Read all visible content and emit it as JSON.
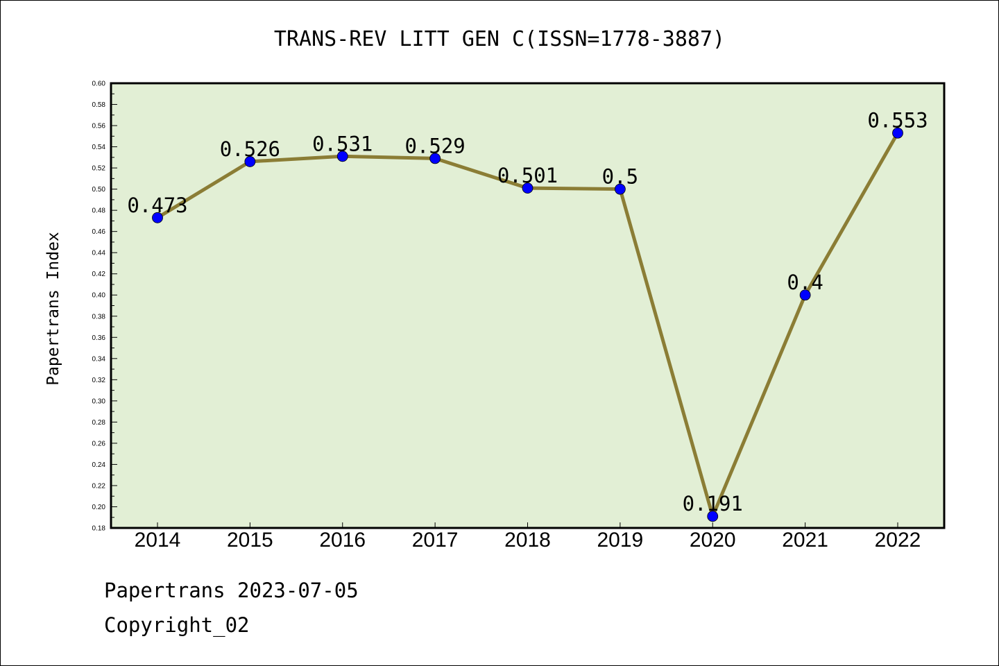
{
  "chart_data": {
    "type": "line",
    "title": "TRANS-REV LITT GEN C(ISSN=1778-3887)",
    "xlabel": "",
    "ylabel": "Papertrans Index",
    "categories": [
      "2014",
      "2015",
      "2016",
      "2017",
      "2018",
      "2019",
      "2020",
      "2021",
      "2022"
    ],
    "values": [
      0.473,
      0.526,
      0.531,
      0.529,
      0.501,
      0.5,
      0.191,
      0.4,
      0.553
    ],
    "data_labels": [
      "0.473",
      "0.526",
      "0.531",
      "0.529",
      "0.501",
      "0.5",
      "0.191",
      "0.4",
      "0.553"
    ],
    "ylim": [
      0.18,
      0.6
    ],
    "yticks": [
      "0.18",
      "0.20",
      "0.22",
      "0.24",
      "0.26",
      "0.28",
      "0.30",
      "0.32",
      "0.34",
      "0.36",
      "0.38",
      "0.40",
      "0.42",
      "0.44",
      "0.46",
      "0.48",
      "0.50",
      "0.52",
      "0.54",
      "0.56",
      "0.58",
      "0.60"
    ],
    "grid": false,
    "colors": {
      "plot_background": "#e2efd5",
      "line": "#8b7d35",
      "marker": "#0000ff"
    }
  },
  "footer": {
    "line1": "Papertrans 2023-07-05",
    "line2": "Copyright_02"
  }
}
